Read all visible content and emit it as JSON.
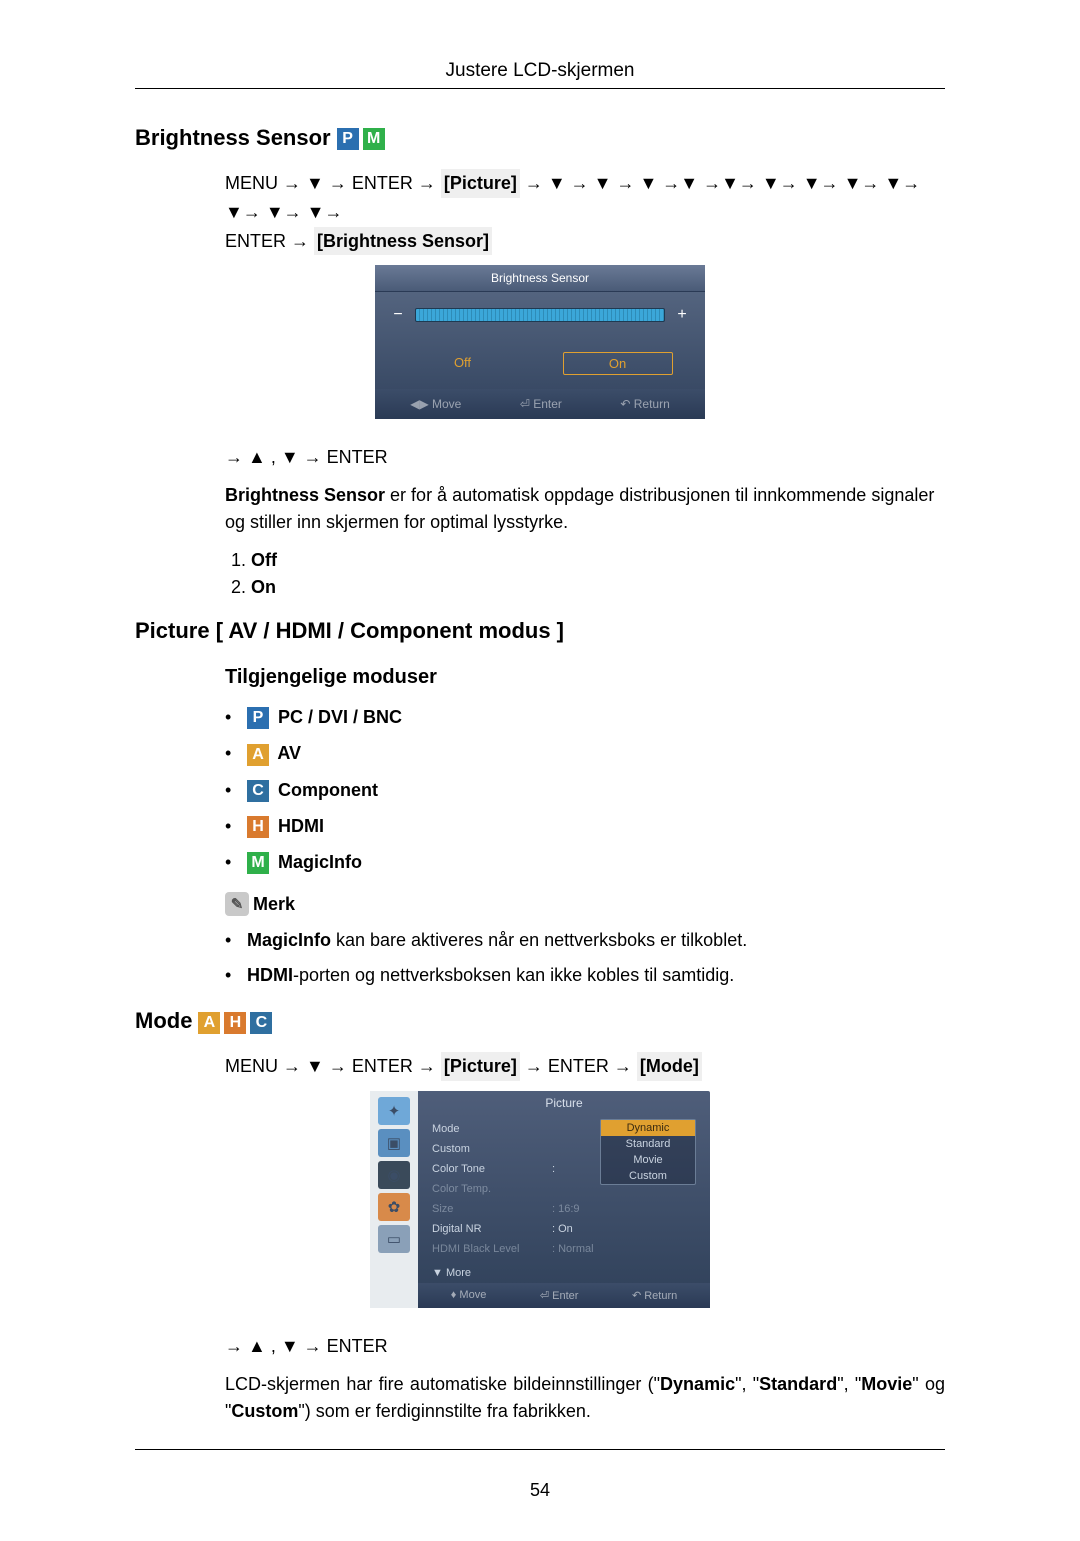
{
  "header": "Justere LCD-skjermen",
  "page_number": "54",
  "section1": {
    "title": "Brightness Sensor",
    "icons": [
      {
        "letter": "P",
        "bg": "#2b6fb0"
      },
      {
        "letter": "M",
        "bg": "#2fb04a"
      }
    ],
    "path_prefix": "MENU → ▼ → ENTER → ",
    "path_label1": "[Picture]",
    "path_arrows": " → ▼ → ▼ → ▼ →▼ →▼→ ▼→ ▼→ ▼→ ▼→ ▼→ ▼→ ▼→ ",
    "path_prefix2": "ENTER → ",
    "path_label2": "[Brightness Sensor]",
    "nav_after": "→ ▲ , ▼ → ENTER",
    "desc_bold": "Brightness Sensor",
    "desc_rest": " er for å automatisk oppdage distribusjonen til innkommende signaler og stiller inn skjermen for optimal lysstyrke.",
    "options": [
      "Off",
      "On"
    ],
    "osd": {
      "title": "Brightness Sensor",
      "off": "Off",
      "on": "On",
      "on_color": "#e0a030",
      "footer": [
        "◀▶ Move",
        "⏎ Enter",
        "↶ Return"
      ]
    }
  },
  "section2": {
    "title": "Picture [ AV / HDMI / Component modus ]",
    "subtitle": "Tilgjengelige moduser",
    "modes": [
      {
        "letter": "P",
        "bg": "#2b6fb0",
        "text": "PC / DVI / BNC"
      },
      {
        "letter": "A",
        "bg": "#e0a030",
        "text": "AV"
      },
      {
        "letter": "C",
        "bg": "#2f6fa0",
        "text": "Component"
      },
      {
        "letter": "H",
        "bg": "#d97a2e",
        "text": "HDMI"
      },
      {
        "letter": "M",
        "bg": "#2fb04a",
        "text": "MagicInfo"
      }
    ],
    "note_label": "Merk",
    "notes": [
      {
        "bold": "MagicInfo",
        "rest": " kan bare aktiveres når en nettverksboks er tilkoblet."
      },
      {
        "bold": "HDMI",
        "rest": "-porten og nettverksboksen kan ikke kobles til samtidig."
      }
    ]
  },
  "section3": {
    "title": "Mode",
    "icons": [
      {
        "letter": "A",
        "bg": "#e0a030"
      },
      {
        "letter": "H",
        "bg": "#d97a2e"
      },
      {
        "letter": "C",
        "bg": "#2f6fa0"
      }
    ],
    "path_prefix": "MENU → ▼ → ENTER → ",
    "path_label1": "[Picture]",
    "path_mid": " → ENTER → ",
    "path_label2": "[Mode]",
    "nav_after": "→ ▲ , ▼ → ENTER",
    "desc_pre": "LCD-skjermen har fire automatiske bildeinnstillinger (\"",
    "desc_b1": "Dynamic",
    "desc_m1": "\", \"",
    "desc_b2": "Standard",
    "desc_m2": "\", \"",
    "desc_b3": "Movie",
    "desc_m3": "\" og \"",
    "desc_b4": "Custom",
    "desc_post": "\") som er ferdiginnstilte fra fabrikken.",
    "osd": {
      "title": "Picture",
      "rows": [
        {
          "label": "Mode",
          "value": ":",
          "dim": false
        },
        {
          "label": "Custom",
          "value": "",
          "dim": false
        },
        {
          "label": "Color Tone",
          "value": ":",
          "dim": false
        },
        {
          "label": "Color Temp.",
          "value": "",
          "dim": true
        },
        {
          "label": "Size",
          "value": ": 16:9",
          "dim": true
        },
        {
          "label": "Digital NR",
          "value": ": On",
          "dim": false
        },
        {
          "label": "HDMI Black Level",
          "value": ": Normal",
          "dim": true
        }
      ],
      "dropdown": [
        "Dynamic",
        "Standard",
        "Movie",
        "Custom"
      ],
      "dropdown_sel_color": "#e0a030",
      "more": "▼ More",
      "footer": [
        "♦ Move",
        "⏎ Enter",
        "↶ Return"
      ],
      "side_icons_bg": [
        "#6fa8d8",
        "#5a8fc0",
        "#3a4a5a",
        "#d88a4a",
        "#8aa0b8"
      ]
    }
  }
}
